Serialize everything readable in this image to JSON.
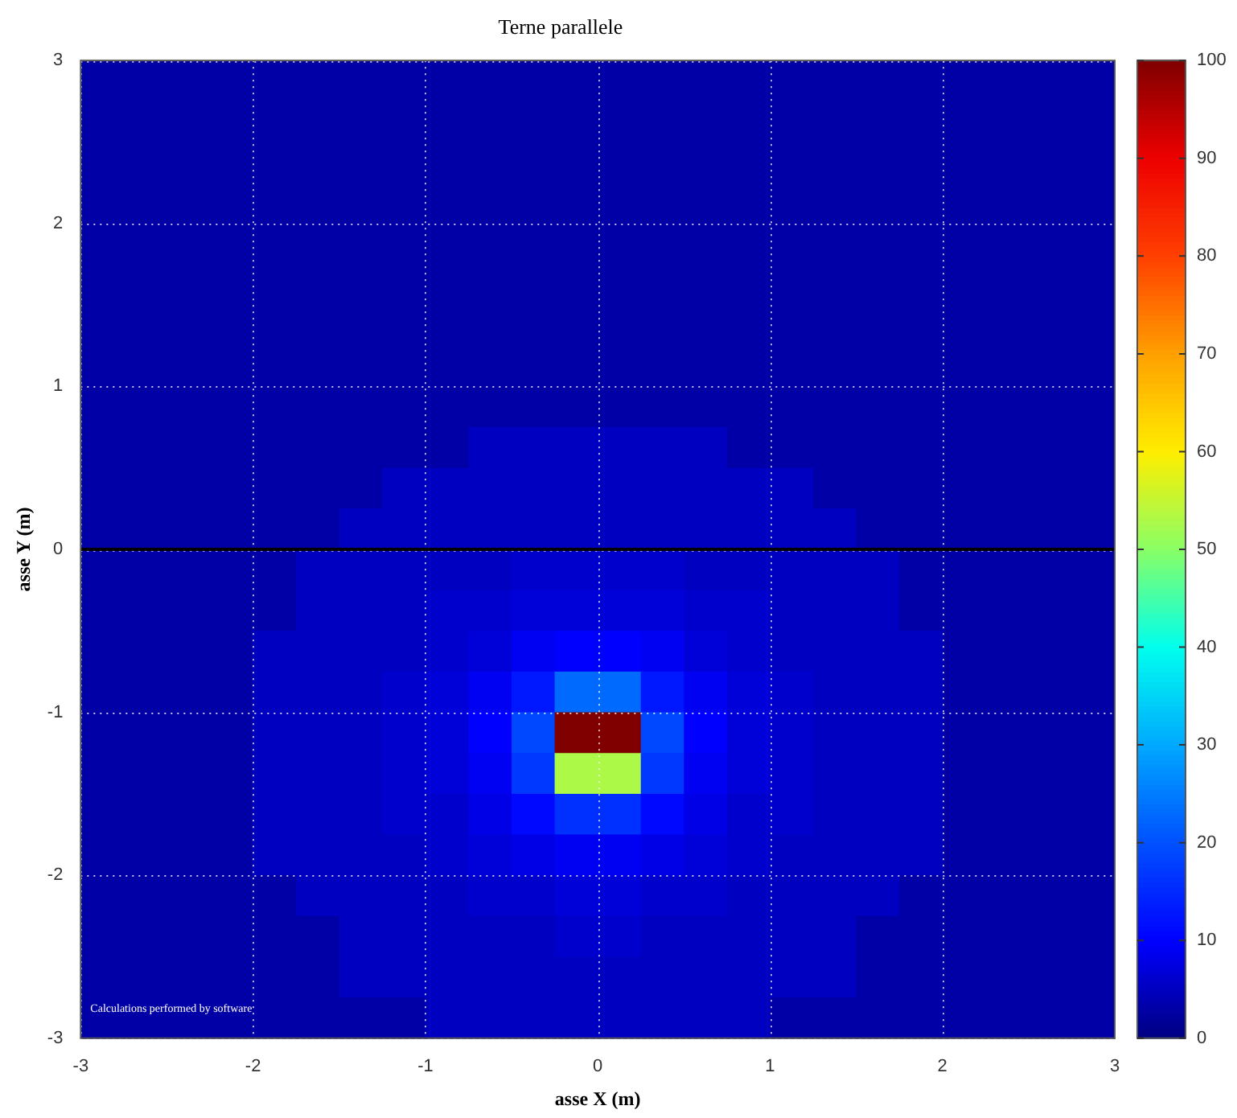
{
  "chart_data": {
    "type": "heatmap",
    "title": "Terne parallele",
    "xlabel": "asse X (m)",
    "ylabel": "asse Y (m)",
    "x": [
      -2.875,
      -2.625,
      -2.375,
      -2.125,
      -1.875,
      -1.625,
      -1.375,
      -1.125,
      -0.875,
      -0.625,
      -0.375,
      -0.125,
      0.125,
      0.375,
      0.625,
      0.875,
      1.125,
      1.375,
      1.625,
      1.875,
      2.125,
      2.375,
      2.625,
      2.875
    ],
    "y": [
      2.875,
      2.625,
      2.375,
      2.125,
      1.875,
      1.625,
      1.375,
      1.125,
      0.875,
      0.625,
      0.375,
      0.125,
      -0.125,
      -0.375,
      -0.625,
      -0.875,
      -1.125,
      -1.375,
      -1.625,
      -1.875,
      -2.125,
      -2.375,
      -2.625,
      -2.875
    ],
    "xlim": [
      -3,
      3
    ],
    "xticks": [
      -3,
      -2,
      -1,
      0,
      1,
      2,
      3
    ],
    "ylim": [
      -3,
      3
    ],
    "yticks": [
      -3,
      -2,
      -1,
      0,
      1,
      2,
      3
    ],
    "clim": [
      0,
      100
    ],
    "cticks": [
      0,
      10,
      20,
      30,
      40,
      50,
      60,
      70,
      80,
      90,
      100
    ],
    "grid": true,
    "ref_lines": [
      {
        "axis": "y",
        "value": 0,
        "color": "#000000"
      }
    ],
    "annotations": [
      "Calculations performed by software"
    ],
    "cells": [
      [
        3,
        3,
        3,
        3,
        3,
        3,
        3,
        3,
        3,
        3,
        3,
        3,
        3,
        3,
        3,
        3,
        3,
        3,
        3,
        3,
        3,
        3,
        3,
        3
      ],
      [
        3,
        3,
        3,
        3,
        3,
        3,
        3,
        3,
        3,
        3,
        3,
        3,
        3,
        3,
        3,
        3,
        3,
        3,
        3,
        3,
        3,
        3,
        3,
        3
      ],
      [
        3,
        3,
        3,
        3,
        3,
        3,
        3,
        3,
        3,
        3,
        3,
        3,
        3,
        3,
        3,
        3,
        3,
        3,
        3,
        3,
        3,
        3,
        3,
        3
      ],
      [
        3,
        3,
        3,
        3,
        3,
        3,
        3,
        3,
        3,
        3,
        3,
        3,
        3,
        3,
        3,
        3,
        3,
        3,
        3,
        3,
        3,
        3,
        3,
        3
      ],
      [
        3,
        3,
        3,
        3,
        3,
        3,
        3,
        3,
        3,
        3,
        3,
        3,
        3,
        3,
        3,
        3,
        3,
        3,
        3,
        3,
        3,
        3,
        3,
        3
      ],
      [
        3,
        3,
        3,
        3,
        3,
        3,
        3,
        3,
        3,
        3,
        3,
        3,
        3,
        3,
        3,
        3,
        3,
        3,
        3,
        3,
        3,
        3,
        3,
        3
      ],
      [
        3,
        3,
        3,
        3,
        3,
        3,
        3,
        3,
        3,
        3,
        3,
        3,
        3,
        3,
        3,
        3,
        3,
        3,
        3,
        3,
        3,
        3,
        3,
        3
      ],
      [
        3,
        3,
        3,
        3,
        3,
        3,
        3,
        3,
        3,
        3,
        3,
        3,
        3,
        3,
        3,
        3,
        3,
        3,
        3,
        3,
        3,
        3,
        3,
        3
      ],
      [
        3,
        3,
        3,
        3,
        3,
        3,
        3,
        3,
        3,
        3,
        3,
        3,
        3,
        3,
        3,
        3,
        3,
        3,
        3,
        3,
        3,
        3,
        3,
        3
      ],
      [
        3,
        3,
        3,
        3,
        3,
        3,
        3,
        3,
        3,
        5,
        5,
        5,
        5,
        5,
        5,
        3,
        3,
        3,
        3,
        3,
        3,
        3,
        3,
        3
      ],
      [
        3,
        3,
        3,
        3,
        3,
        3,
        3,
        5,
        5,
        5,
        5,
        5,
        5,
        5,
        5,
        5,
        5,
        3,
        3,
        3,
        3,
        3,
        3,
        3
      ],
      [
        3,
        3,
        3,
        3,
        3,
        3,
        5,
        5,
        5,
        5,
        5,
        5,
        5,
        5,
        5,
        5,
        5,
        5,
        3,
        3,
        3,
        3,
        3,
        3
      ],
      [
        3,
        3,
        3,
        3,
        3,
        5,
        5,
        5,
        5,
        5,
        6,
        6,
        6,
        6,
        5,
        5,
        5,
        5,
        5,
        3,
        3,
        3,
        3,
        3
      ],
      [
        3,
        3,
        3,
        3,
        3,
        5,
        5,
        5,
        6,
        6,
        7,
        7,
        7,
        7,
        6,
        6,
        5,
        5,
        5,
        3,
        3,
        3,
        3,
        3
      ],
      [
        3,
        3,
        3,
        3,
        5,
        5,
        5,
        5,
        6,
        7,
        9,
        10,
        10,
        9,
        7,
        6,
        5,
        5,
        5,
        5,
        3,
        3,
        3,
        3
      ],
      [
        3,
        3,
        3,
        3,
        5,
        5,
        5,
        6,
        7,
        9,
        13,
        23,
        23,
        13,
        9,
        7,
        6,
        5,
        5,
        5,
        3,
        3,
        3,
        3
      ],
      [
        3,
        3,
        3,
        3,
        5,
        5,
        5,
        6,
        7,
        10,
        19,
        100,
        100,
        19,
        10,
        7,
        6,
        5,
        5,
        5,
        3,
        3,
        3,
        3
      ],
      [
        3,
        3,
        3,
        3,
        5,
        5,
        5,
        6,
        7,
        9,
        17,
        53,
        53,
        17,
        9,
        7,
        6,
        5,
        5,
        5,
        3,
        3,
        3,
        3
      ],
      [
        3,
        3,
        3,
        3,
        5,
        5,
        5,
        6,
        6,
        8,
        11,
        16,
        16,
        11,
        8,
        6,
        6,
        5,
        5,
        5,
        3,
        3,
        3,
        3
      ],
      [
        3,
        3,
        3,
        3,
        5,
        5,
        5,
        5,
        6,
        7,
        8,
        9,
        9,
        8,
        7,
        6,
        5,
        5,
        5,
        5,
        3,
        3,
        3,
        3
      ],
      [
        3,
        3,
        3,
        3,
        3,
        5,
        5,
        5,
        5,
        6,
        6,
        7,
        7,
        6,
        6,
        5,
        5,
        5,
        5,
        3,
        3,
        3,
        3,
        3
      ],
      [
        3,
        3,
        3,
        3,
        3,
        3,
        5,
        5,
        5,
        5,
        5,
        6,
        6,
        5,
        5,
        5,
        5,
        5,
        3,
        3,
        3,
        3,
        3,
        3
      ],
      [
        3,
        3,
        3,
        3,
        3,
        3,
        5,
        5,
        5,
        5,
        5,
        5,
        5,
        5,
        5,
        5,
        5,
        5,
        3,
        3,
        3,
        3,
        3,
        3
      ],
      [
        3,
        3,
        3,
        3,
        3,
        3,
        3,
        3,
        5,
        5,
        5,
        5,
        5,
        5,
        5,
        5,
        3,
        3,
        3,
        3,
        3,
        3,
        3,
        3
      ]
    ]
  }
}
